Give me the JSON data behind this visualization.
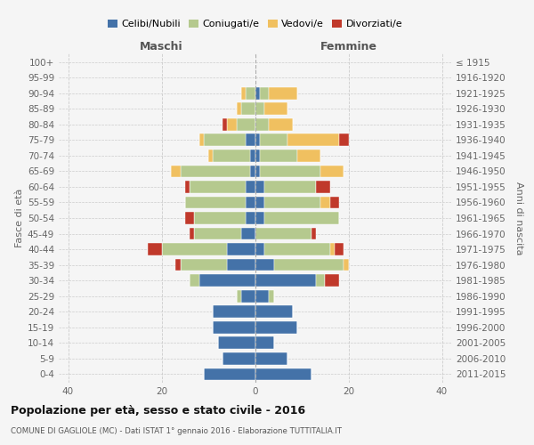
{
  "age_groups": [
    "0-4",
    "5-9",
    "10-14",
    "15-19",
    "20-24",
    "25-29",
    "30-34",
    "35-39",
    "40-44",
    "45-49",
    "50-54",
    "55-59",
    "60-64",
    "65-69",
    "70-74",
    "75-79",
    "80-84",
    "85-89",
    "90-94",
    "95-99",
    "100+"
  ],
  "birth_years": [
    "2011-2015",
    "2006-2010",
    "2001-2005",
    "1996-2000",
    "1991-1995",
    "1986-1990",
    "1981-1985",
    "1976-1980",
    "1971-1975",
    "1966-1970",
    "1961-1965",
    "1956-1960",
    "1951-1955",
    "1946-1950",
    "1941-1945",
    "1936-1940",
    "1931-1935",
    "1926-1930",
    "1921-1925",
    "1916-1920",
    "≤ 1915"
  ],
  "male": {
    "celibi": [
      11,
      7,
      8,
      9,
      9,
      3,
      12,
      6,
      6,
      3,
      2,
      2,
      2,
      1,
      1,
      2,
      0,
      0,
      0,
      0,
      0
    ],
    "coniugati": [
      0,
      0,
      0,
      0,
      0,
      1,
      2,
      10,
      14,
      10,
      11,
      13,
      12,
      15,
      8,
      9,
      4,
      3,
      2,
      0,
      0
    ],
    "vedovi": [
      0,
      0,
      0,
      0,
      0,
      0,
      0,
      0,
      0,
      0,
      0,
      0,
      0,
      2,
      1,
      1,
      2,
      1,
      1,
      0,
      0
    ],
    "divorziati": [
      0,
      0,
      0,
      0,
      0,
      0,
      0,
      1,
      3,
      1,
      2,
      0,
      1,
      0,
      0,
      0,
      1,
      0,
      0,
      0,
      0
    ]
  },
  "female": {
    "nubili": [
      12,
      7,
      4,
      9,
      8,
      3,
      13,
      4,
      2,
      0,
      2,
      2,
      2,
      1,
      1,
      1,
      0,
      0,
      1,
      0,
      0
    ],
    "coniugate": [
      0,
      0,
      0,
      0,
      0,
      1,
      2,
      15,
      14,
      12,
      16,
      12,
      11,
      13,
      8,
      6,
      3,
      2,
      2,
      0,
      0
    ],
    "vedove": [
      0,
      0,
      0,
      0,
      0,
      0,
      0,
      1,
      1,
      0,
      0,
      2,
      0,
      5,
      5,
      11,
      5,
      5,
      6,
      0,
      0
    ],
    "divorziate": [
      0,
      0,
      0,
      0,
      0,
      0,
      3,
      0,
      2,
      1,
      0,
      2,
      3,
      0,
      0,
      2,
      0,
      0,
      0,
      0,
      0
    ]
  },
  "colors": {
    "celibi": "#4472a8",
    "coniugati": "#b5c98e",
    "vedovi": "#f0c060",
    "divorziati": "#c0392b"
  },
  "xlim": 42,
  "title": "Popolazione per età, sesso e stato civile - 2016",
  "subtitle": "COMUNE DI GAGLIOLE (MC) - Dati ISTAT 1° gennaio 2016 - Elaborazione TUTTITALIA.IT",
  "ylabel_left": "Fasce di età",
  "ylabel_right": "Anni di nascita",
  "xlabel_male": "Maschi",
  "xlabel_female": "Femmine",
  "legend_labels": [
    "Celibi/Nubili",
    "Coniugati/e",
    "Vedovi/e",
    "Divorziati/e"
  ],
  "bg_color": "#f5f5f5"
}
